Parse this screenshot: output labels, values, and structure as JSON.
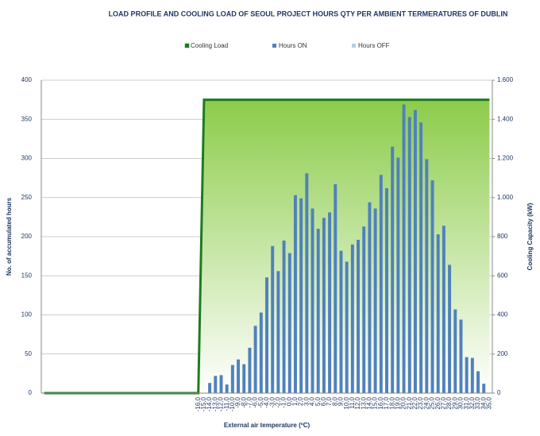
{
  "chart_data": {
    "type": "bar-line",
    "title": "LOAD PROFILE AND COOLING LOAD OF SEOUL PROJECT  HOURS QTY PER AMBIENT TERMERATURES OF DUBLIN",
    "x_label": "External air temperature (ºC)",
    "y_label": "No. of accumulated hours",
    "y2_label": "Cooling Capacity (kW)",
    "categories": [
      null,
      null,
      null,
      null,
      null,
      null,
      null,
      null,
      null,
      null,
      null,
      null,
      null,
      null,
      null,
      null,
      null,
      null,
      null,
      null,
      null,
      null,
      null,
      null,
      null,
      null,
      null,
      "-16,0",
      "-15,0",
      "-14,0",
      "-13,0",
      "-12,0",
      "-11,0",
      "-10,0",
      "-9,0",
      "-8,0",
      "-7,0",
      "-6,0",
      "-5,0",
      "-4,0",
      "-3,0",
      "-2,0",
      "-1,0",
      "0,0",
      "1,0",
      "2,0",
      "3,0",
      "4,0",
      "5,0",
      "6,0",
      "7,0",
      "8,0",
      "9,0",
      "10,0",
      "11,0",
      "12,0",
      "13,0",
      "14,0",
      "15,0",
      "16,0",
      "17,0",
      "18,0",
      "19,0",
      "20,0",
      "21,0",
      "22,0",
      "23,0",
      "24,0",
      "25,0",
      "26,0",
      "27,0",
      "28,0",
      "29,0",
      "30,0",
      "31,0",
      "32,0",
      "33,0",
      "34,0",
      "35,0"
    ],
    "series": [
      {
        "name": "Cooling Load",
        "kind": "area",
        "axis": "y2",
        "color": "#1e7b1e",
        "values": [
          0,
          0,
          0,
          0,
          0,
          0,
          0,
          0,
          0,
          0,
          0,
          0,
          0,
          0,
          0,
          0,
          0,
          0,
          0,
          0,
          0,
          0,
          0,
          0,
          0,
          0,
          0,
          0,
          1500,
          1500,
          1500,
          1500,
          1500,
          1500,
          1500,
          1500,
          1500,
          1500,
          1500,
          1500,
          1500,
          1500,
          1500,
          1500,
          1500,
          1500,
          1500,
          1500,
          1500,
          1500,
          1500,
          1500,
          1500,
          1500,
          1500,
          1500,
          1500,
          1500,
          1500,
          1500,
          1500,
          1500,
          1500,
          1500,
          1500,
          1500,
          1500,
          1500,
          1500,
          1500,
          1500,
          1500,
          1500,
          1500,
          1500,
          1500,
          1500,
          1500,
          1500
        ]
      },
      {
        "name": "Hours ON",
        "kind": "bar",
        "color": "#4f81bd",
        "values": [
          null,
          null,
          null,
          null,
          null,
          null,
          null,
          null,
          null,
          null,
          null,
          null,
          null,
          null,
          null,
          null,
          null,
          null,
          null,
          null,
          null,
          null,
          null,
          null,
          null,
          null,
          null,
          0,
          0,
          13,
          22,
          23,
          11,
          36,
          43,
          37,
          58,
          86,
          103,
          148,
          188,
          156,
          195,
          179,
          253,
          249,
          281,
          236,
          210,
          224,
          231,
          267,
          182,
          168,
          190,
          196,
          213,
          244,
          236,
          279,
          262,
          315,
          301,
          369,
          353,
          362,
          346,
          299,
          272,
          203,
          214,
          164,
          107,
          94,
          46,
          45,
          28,
          12,
          0
        ]
      },
      {
        "name": "Hours OFF",
        "kind": "bar",
        "color": "#b9cde5",
        "values": [
          null,
          null,
          null,
          null,
          null,
          null,
          null,
          null,
          null,
          null,
          null,
          null,
          null,
          null,
          null,
          null,
          null,
          null,
          null,
          null,
          null,
          null,
          null,
          null,
          null,
          null,
          null,
          0,
          0,
          0,
          0,
          0,
          0,
          0,
          0,
          0,
          0,
          0,
          0,
          0,
          0,
          0,
          0,
          0,
          0,
          0,
          0,
          0,
          0,
          0,
          0,
          0,
          0,
          0,
          0,
          0,
          0,
          0,
          0,
          0,
          0,
          0,
          0,
          0,
          0,
          0,
          0,
          0,
          0,
          0,
          0,
          0,
          0,
          0,
          0,
          0,
          0,
          0,
          0
        ]
      }
    ],
    "ylim": [
      0,
      400
    ],
    "yticks": [
      0,
      50,
      100,
      150,
      200,
      250,
      300,
      350,
      400
    ],
    "y2lim": [
      0,
      1600
    ],
    "y2ticks": [
      0,
      200,
      400,
      600,
      800,
      {
        "value": 1000,
        "label": "1.000"
      },
      {
        "value": 1200,
        "label": "1.200"
      },
      {
        "value": 1400,
        "label": "1.400"
      },
      {
        "value": 1600,
        "label": "1.600"
      }
    ],
    "grid": true,
    "legend": "top"
  }
}
